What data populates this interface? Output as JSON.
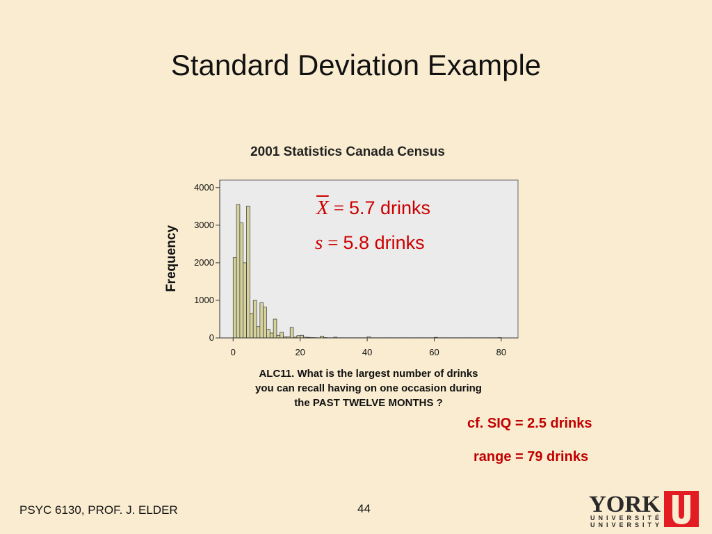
{
  "slide_title": "Standard Deviation Example",
  "stats": {
    "mean_symbol": "X",
    "mean_value": "5.7 drinks",
    "sd_symbol": "s",
    "sd_value": "5.8 drinks",
    "equals": "="
  },
  "notes": {
    "siq": "cf. SIQ = 2.5 drinks",
    "range": "range = 79 drinks"
  },
  "caption": {
    "line1": "ALC11.  What is the largest number of drinks",
    "line2": "you can recall having on one occasion during",
    "line3": "the PAST TWELVE MONTHS ?"
  },
  "footer": {
    "left": "PSYC 6130, PROF. J. ELDER",
    "page_number": "44"
  },
  "logo": {
    "word": "YORK",
    "line1": "UNIVERSITÉ",
    "line2": "UNIVERSITY",
    "color": "#e31b23"
  },
  "colors": {
    "background": "#f9ecd0",
    "plot_background": "#ebebeb",
    "bar_fill": "#d6d29e",
    "accent_red": "#c00000"
  },
  "chart_data": {
    "type": "bar",
    "title": "2001 Statistics Canada Census",
    "xlabel": "",
    "ylabel": "Frequency",
    "xlim": [
      -4,
      85
    ],
    "ylim": [
      0,
      4200
    ],
    "xticks": [
      0,
      20,
      40,
      60,
      80
    ],
    "yticks": [
      0,
      1000,
      2000,
      3000,
      4000
    ],
    "bin_width": 1,
    "x": [
      0,
      1,
      2,
      3,
      4,
      5,
      6,
      7,
      8,
      9,
      10,
      11,
      12,
      13,
      14,
      15,
      16,
      17,
      18,
      19,
      20,
      21,
      22,
      23,
      24,
      25,
      26,
      27,
      28,
      29,
      30,
      31,
      32,
      33,
      34,
      35,
      36,
      37,
      38,
      39,
      40,
      41,
      42,
      43,
      44,
      45,
      46,
      47,
      48,
      49,
      50,
      51,
      52,
      53,
      54,
      55,
      56,
      57,
      58,
      59,
      60,
      61,
      62,
      63,
      64,
      65,
      66,
      67,
      68,
      69,
      70,
      71,
      72,
      73,
      74,
      75,
      76,
      77,
      78,
      79
    ],
    "values": [
      2140,
      3550,
      3060,
      2000,
      3510,
      650,
      1000,
      300,
      940,
      820,
      230,
      130,
      500,
      70,
      150,
      30,
      30,
      280,
      20,
      60,
      70,
      20,
      15,
      10,
      8,
      5,
      50,
      10,
      5,
      5,
      20,
      5,
      5,
      5,
      5,
      5,
      5,
      5,
      5,
      5,
      30,
      5,
      5,
      5,
      5,
      5,
      5,
      5,
      5,
      5,
      5,
      5,
      5,
      5,
      5,
      5,
      5,
      5,
      5,
      5,
      15,
      5,
      5,
      5,
      5,
      5,
      5,
      5,
      5,
      5,
      5,
      5,
      5,
      5,
      5,
      5,
      5,
      5,
      5,
      10
    ],
    "grid": false,
    "legend": "none"
  }
}
